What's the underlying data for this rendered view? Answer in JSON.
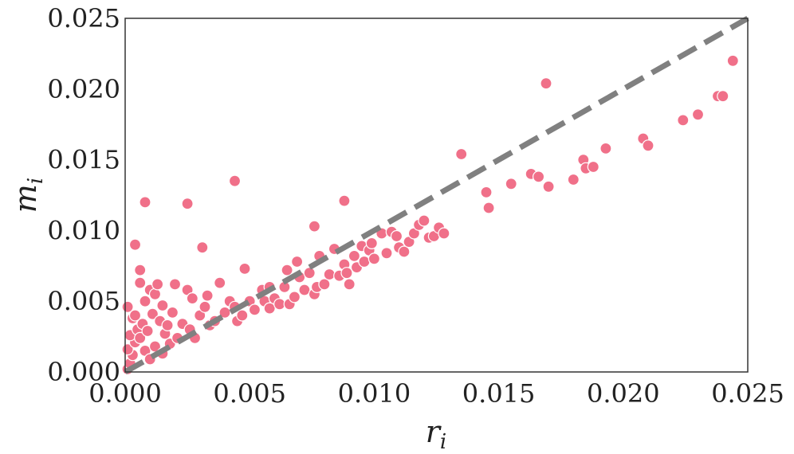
{
  "chart_data": {
    "type": "scatter",
    "title": "",
    "xlabel": {
      "base": "r",
      "sub": "i"
    },
    "ylabel": {
      "base": "m",
      "sub": "i"
    },
    "xlim": [
      0,
      0.025
    ],
    "ylim": [
      0,
      0.025
    ],
    "grid": false,
    "x_ticks": [
      "0.000",
      "0.005",
      "0.010",
      "0.015",
      "0.020",
      "0.025"
    ],
    "y_ticks": [
      "0.000",
      "0.005",
      "0.010",
      "0.015",
      "0.020",
      "0.025"
    ],
    "colors": {
      "points": "#f07089",
      "point_edge": "#ffffff",
      "reference_line": "#808080",
      "frame": "#333333"
    },
    "reference_line": {
      "style": "dashed",
      "x": [
        0,
        0.025
      ],
      "y": [
        0,
        0.025
      ]
    },
    "series": [
      {
        "points": [
          [
            0.0001,
            0.0002
          ],
          [
            0.0002,
            0.0006
          ],
          [
            0.0003,
            0.0012
          ],
          [
            0.0001,
            0.0016
          ],
          [
            0.0004,
            0.0021
          ],
          [
            0.0002,
            0.0026
          ],
          [
            0.0005,
            0.003
          ],
          [
            0.0003,
            0.0038
          ],
          [
            0.0001,
            0.0046
          ],
          [
            0.0004,
            0.004
          ],
          [
            0.0007,
            0.0034
          ],
          [
            0.0006,
            0.0024
          ],
          [
            0.0008,
            0.0015
          ],
          [
            0.001,
            0.0009
          ],
          [
            0.0012,
            0.0018
          ],
          [
            0.0009,
            0.0029
          ],
          [
            0.0011,
            0.0041
          ],
          [
            0.0008,
            0.005
          ],
          [
            0.0006,
            0.0063
          ],
          [
            0.001,
            0.0058
          ],
          [
            0.0012,
            0.0055
          ],
          [
            0.0013,
            0.0062
          ],
          [
            0.0015,
            0.0047
          ],
          [
            0.0014,
            0.0036
          ],
          [
            0.0016,
            0.0027
          ],
          [
            0.0018,
            0.002
          ],
          [
            0.0015,
            0.0013
          ],
          [
            0.0017,
            0.0033
          ],
          [
            0.0019,
            0.0042
          ],
          [
            0.0021,
            0.0024
          ],
          [
            0.0023,
            0.0034
          ],
          [
            0.002,
            0.0062
          ],
          [
            0.0025,
            0.0058
          ],
          [
            0.0026,
            0.003
          ],
          [
            0.0028,
            0.0024
          ],
          [
            0.003,
            0.004
          ],
          [
            0.0032,
            0.0046
          ],
          [
            0.0027,
            0.0052
          ],
          [
            0.0033,
            0.0054
          ],
          [
            0.0034,
            0.0033
          ],
          [
            0.0036,
            0.0036
          ],
          [
            0.0038,
            0.0063
          ],
          [
            0.004,
            0.0042
          ],
          [
            0.0042,
            0.005
          ],
          [
            0.0044,
            0.0046
          ],
          [
            0.0045,
            0.0036
          ],
          [
            0.0047,
            0.004
          ],
          [
            0.0048,
            0.0073
          ],
          [
            0.005,
            0.005
          ],
          [
            0.0052,
            0.0044
          ],
          [
            0.0055,
            0.0058
          ],
          [
            0.0056,
            0.005
          ],
          [
            0.0058,
            0.006
          ],
          [
            0.0058,
            0.0045
          ],
          [
            0.006,
            0.0052
          ],
          [
            0.0062,
            0.0048
          ],
          [
            0.0064,
            0.006
          ],
          [
            0.0065,
            0.0072
          ],
          [
            0.0066,
            0.0048
          ],
          [
            0.0068,
            0.0053
          ],
          [
            0.0069,
            0.0078
          ],
          [
            0.007,
            0.0067
          ],
          [
            0.0072,
            0.0058
          ],
          [
            0.0074,
            0.007
          ],
          [
            0.0076,
            0.0055
          ],
          [
            0.0077,
            0.006
          ],
          [
            0.0078,
            0.0082
          ],
          [
            0.008,
            0.0062
          ],
          [
            0.0082,
            0.0069
          ],
          [
            0.0084,
            0.0087
          ],
          [
            0.0086,
            0.0068
          ],
          [
            0.0088,
            0.0076
          ],
          [
            0.0089,
            0.007
          ],
          [
            0.009,
            0.0062
          ],
          [
            0.0092,
            0.0082
          ],
          [
            0.0093,
            0.0074
          ],
          [
            0.0095,
            0.0089
          ],
          [
            0.0096,
            0.0078
          ],
          [
            0.0098,
            0.0086
          ],
          [
            0.0099,
            0.0091
          ],
          [
            0.01,
            0.008
          ],
          [
            0.0103,
            0.0098
          ],
          [
            0.0105,
            0.0084
          ],
          [
            0.0107,
            0.0099
          ],
          [
            0.0109,
            0.0096
          ],
          [
            0.011,
            0.0088
          ],
          [
            0.0112,
            0.0085
          ],
          [
            0.0114,
            0.0092
          ],
          [
            0.0116,
            0.0098
          ],
          [
            0.0118,
            0.0104
          ],
          [
            0.012,
            0.0107
          ],
          [
            0.0122,
            0.0095
          ],
          [
            0.0124,
            0.0096
          ],
          [
            0.0126,
            0.0102
          ],
          [
            0.0128,
            0.0098
          ],
          [
            0.0006,
            0.0072
          ],
          [
            0.0008,
            0.012
          ],
          [
            0.0004,
            0.009
          ],
          [
            0.0025,
            0.0119
          ],
          [
            0.0031,
            0.0088
          ],
          [
            0.0044,
            0.0135
          ],
          [
            0.0076,
            0.0103
          ],
          [
            0.0088,
            0.0121
          ],
          [
            0.0135,
            0.0154
          ],
          [
            0.0146,
            0.0116
          ],
          [
            0.0145,
            0.0127
          ],
          [
            0.0155,
            0.0133
          ],
          [
            0.0163,
            0.014
          ],
          [
            0.0166,
            0.0138
          ],
          [
            0.017,
            0.0131
          ],
          [
            0.0169,
            0.0204
          ],
          [
            0.018,
            0.0136
          ],
          [
            0.0184,
            0.015
          ],
          [
            0.0185,
            0.0144
          ],
          [
            0.0188,
            0.0145
          ],
          [
            0.0193,
            0.0158
          ],
          [
            0.0208,
            0.0165
          ],
          [
            0.021,
            0.016
          ],
          [
            0.0224,
            0.0178
          ],
          [
            0.023,
            0.0182
          ],
          [
            0.0238,
            0.0195
          ],
          [
            0.024,
            0.0195
          ],
          [
            0.0244,
            0.022
          ]
        ]
      }
    ]
  }
}
